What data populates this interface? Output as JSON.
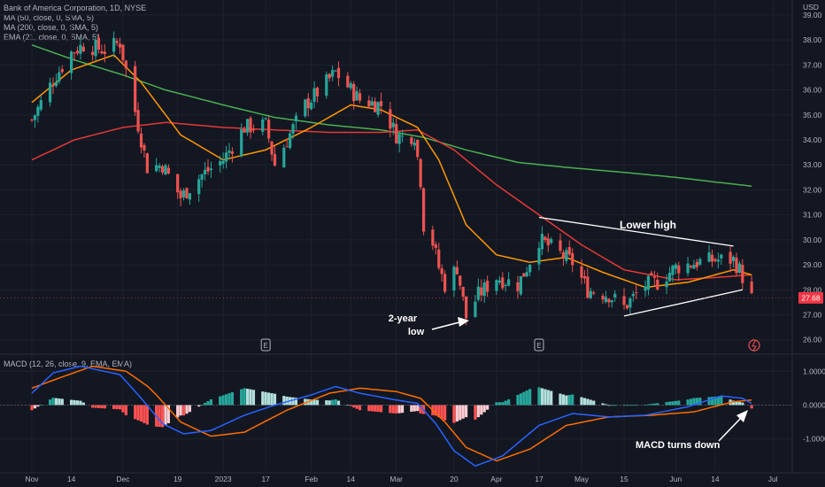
{
  "legend": {
    "title": "Bank of America Corporation, 1D, NYSE",
    "ma50": "MA (50, close, 0, SMA, 5)",
    "ma200": "MA (200, close, 0, SMA, 5)",
    "ema21": "EMA (21, close, 0, SMA, 5)",
    "macd": "MACD (12, 26, close, 9, EMA, EMA)"
  },
  "currency": "USD",
  "last_price": "27.68",
  "annotations": {
    "lower_high": "Lower high",
    "two_year_low_1": "2-year",
    "two_year_low_2": "low",
    "macd_turns_down": "MACD turns down"
  },
  "event_markers": [
    "E",
    "E"
  ],
  "colors": {
    "background": "#131722",
    "up": "#26a69a",
    "down": "#ef5350",
    "ma50": "#e53935",
    "ma200": "#4caf50",
    "ema21": "#ff9800",
    "macd_line": "#2962ff",
    "signal_line": "#ff6d00",
    "hist_up": "#26a69a",
    "hist_up_fading": "#b2dfdb",
    "hist_down": "#ff5252",
    "hist_down_fading": "#ffcdd2",
    "grid": "#1e222d",
    "price_tag": "#f23645"
  },
  "chart_data": {
    "type": "candlestick",
    "y_axis": {
      "ticks": [
        "39.00",
        "38.00",
        "37.00",
        "36.00",
        "35.00",
        "34.00",
        "33.00",
        "32.00",
        "31.00",
        "30.00",
        "29.00",
        "28.00",
        "27.00",
        "26.00"
      ],
      "range": [
        25.6,
        39.6
      ]
    },
    "macd_axis": {
      "ticks": [
        "1.0000",
        "0.0000",
        "-1.0000"
      ],
      "range": [
        -1.95,
        1.4
      ]
    },
    "x_axis": {
      "ticks": [
        "Nov",
        "14",
        "Dec",
        "19",
        "2023",
        "17",
        "Feb",
        "14",
        "Mar",
        "20",
        "Apr",
        "17",
        "May",
        "15",
        "Jun",
        "14",
        "Jul"
      ],
      "range": [
        "2022-11-01",
        "2023-07-05"
      ]
    },
    "price_keypoints": [
      [
        "2022-11-01",
        34.8
      ],
      [
        "2022-11-08",
        36.4
      ],
      [
        "2022-11-14",
        37.5
      ],
      [
        "2022-11-18",
        37.8
      ],
      [
        "2022-11-25",
        37.6
      ],
      [
        "2022-11-30",
        37.9
      ],
      [
        "2022-12-02",
        36.8
      ],
      [
        "2022-12-06",
        34.6
      ],
      [
        "2022-12-09",
        32.9
      ],
      [
        "2022-12-14",
        33.0
      ],
      [
        "2022-12-20",
        31.7
      ],
      [
        "2022-12-27",
        32.6
      ],
      [
        "2023-01-03",
        33.2
      ],
      [
        "2023-01-10",
        34.5
      ],
      [
        "2023-01-17",
        34.6
      ],
      [
        "2023-01-20",
        33.0
      ],
      [
        "2023-01-24",
        34.0
      ],
      [
        "2023-01-30",
        35.4
      ],
      [
        "2023-02-03",
        35.9
      ],
      [
        "2023-02-09",
        36.7
      ],
      [
        "2023-02-14",
        36.0
      ],
      [
        "2023-02-17",
        35.6
      ],
      [
        "2023-02-24",
        35.4
      ],
      [
        "2023-03-01",
        34.2
      ],
      [
        "2023-03-03",
        34.1
      ],
      [
        "2023-03-07",
        34.2
      ],
      [
        "2023-03-09",
        32.4
      ],
      [
        "2023-03-10",
        30.6
      ],
      [
        "2023-03-13",
        29.9
      ],
      [
        "2023-03-15",
        28.9
      ],
      [
        "2023-03-17",
        28.2
      ],
      [
        "2023-03-21",
        28.9
      ],
      [
        "2023-03-24",
        26.9
      ],
      [
        "2023-03-28",
        27.8
      ],
      [
        "2023-04-03",
        28.5
      ],
      [
        "2023-04-10",
        28.2
      ],
      [
        "2023-04-13",
        28.9
      ],
      [
        "2023-04-17",
        30.0
      ],
      [
        "2023-04-21",
        29.7
      ],
      [
        "2023-04-28",
        29.1
      ],
      [
        "2023-05-03",
        28.0
      ],
      [
        "2023-05-10",
        27.8
      ],
      [
        "2023-05-15",
        27.3
      ],
      [
        "2023-05-22",
        28.2
      ],
      [
        "2023-05-26",
        28.3
      ],
      [
        "2023-06-01",
        28.9
      ],
      [
        "2023-06-08",
        29.1
      ],
      [
        "2023-06-14",
        29.2
      ],
      [
        "2023-06-20",
        29.2
      ],
      [
        "2023-06-22",
        28.8
      ],
      [
        "2023-06-26",
        27.68
      ]
    ],
    "ema21_keypoints": [
      [
        "2022-11-01",
        35.5
      ],
      [
        "2022-11-14",
        36.8
      ],
      [
        "2022-11-28",
        37.4
      ],
      [
        "2022-12-07",
        36.3
      ],
      [
        "2022-12-20",
        34.2
      ],
      [
        "2023-01-03",
        33.2
      ],
      [
        "2023-01-17",
        33.6
      ],
      [
        "2023-02-01",
        34.5
      ],
      [
        "2023-02-14",
        35.4
      ],
      [
        "2023-02-24",
        35.2
      ],
      [
        "2023-03-08",
        34.5
      ],
      [
        "2023-03-15",
        33.2
      ],
      [
        "2023-03-24",
        30.6
      ],
      [
        "2023-04-03",
        29.4
      ],
      [
        "2023-04-14",
        29.1
      ],
      [
        "2023-04-26",
        29.3
      ],
      [
        "2023-05-08",
        28.7
      ],
      [
        "2023-05-22",
        28.1
      ],
      [
        "2023-06-05",
        28.3
      ],
      [
        "2023-06-20",
        28.8
      ],
      [
        "2023-06-26",
        28.6
      ]
    ],
    "ma50_keypoints": [
      [
        "2022-11-01",
        33.2
      ],
      [
        "2022-11-15",
        34.0
      ],
      [
        "2022-12-01",
        34.5
      ],
      [
        "2022-12-15",
        34.7
      ],
      [
        "2023-01-03",
        34.5
      ],
      [
        "2023-01-20",
        34.4
      ],
      [
        "2023-02-07",
        34.3
      ],
      [
        "2023-02-24",
        34.3
      ],
      [
        "2023-03-08",
        34.4
      ],
      [
        "2023-03-20",
        33.6
      ],
      [
        "2023-04-03",
        32.2
      ],
      [
        "2023-04-17",
        31.0
      ],
      [
        "2023-05-01",
        29.8
      ],
      [
        "2023-05-15",
        28.8
      ],
      [
        "2023-06-01",
        28.4
      ],
      [
        "2023-06-15",
        28.5
      ],
      [
        "2023-06-26",
        28.6
      ]
    ],
    "ma200_keypoints": [
      [
        "2022-11-01",
        37.8
      ],
      [
        "2022-11-15",
        37.2
      ],
      [
        "2022-12-01",
        36.6
      ],
      [
        "2022-12-15",
        36.0
      ],
      [
        "2023-01-03",
        35.4
      ],
      [
        "2023-01-20",
        34.9
      ],
      [
        "2023-02-07",
        34.6
      ],
      [
        "2023-02-24",
        34.4
      ],
      [
        "2023-03-10",
        34.1
      ],
      [
        "2023-03-24",
        33.6
      ],
      [
        "2023-04-10",
        33.1
      ],
      [
        "2023-04-26",
        32.9
      ],
      [
        "2023-05-15",
        32.7
      ],
      [
        "2023-06-01",
        32.5
      ],
      [
        "2023-06-15",
        32.3
      ],
      [
        "2023-06-26",
        32.15
      ]
    ],
    "macd_keypoints": [
      [
        "2022-11-01",
        0.35
      ],
      [
        "2022-11-08",
        0.95
      ],
      [
        "2022-11-17",
        1.15
      ],
      [
        "2022-11-30",
        0.9
      ],
      [
        "2022-12-07",
        0.2
      ],
      [
        "2022-12-14",
        -0.55
      ],
      [
        "2022-12-21",
        -0.85
      ],
      [
        "2022-12-30",
        -0.75
      ],
      [
        "2023-01-10",
        -0.3
      ],
      [
        "2023-01-20",
        0.0
      ],
      [
        "2023-02-01",
        0.3
      ],
      [
        "2023-02-09",
        0.55
      ],
      [
        "2023-02-17",
        0.35
      ],
      [
        "2023-03-01",
        0.15
      ],
      [
        "2023-03-08",
        0.05
      ],
      [
        "2023-03-14",
        -0.55
      ],
      [
        "2023-03-20",
        -1.35
      ],
      [
        "2023-03-27",
        -1.8
      ],
      [
        "2023-04-05",
        -1.5
      ],
      [
        "2023-04-17",
        -0.6
      ],
      [
        "2023-04-28",
        -0.25
      ],
      [
        "2023-05-10",
        -0.35
      ],
      [
        "2023-05-22",
        -0.3
      ],
      [
        "2023-06-05",
        -0.05
      ],
      [
        "2023-06-16",
        0.27
      ],
      [
        "2023-06-23",
        0.2
      ],
      [
        "2023-06-26",
        0.05
      ]
    ],
    "signal_keypoints": [
      [
        "2022-11-01",
        0.5
      ],
      [
        "2022-11-10",
        0.8
      ],
      [
        "2022-11-21",
        1.15
      ],
      [
        "2022-12-02",
        1.0
      ],
      [
        "2022-12-10",
        0.5
      ],
      [
        "2022-12-20",
        -0.5
      ],
      [
        "2022-12-30",
        -0.92
      ],
      [
        "2023-01-10",
        -0.8
      ],
      [
        "2023-01-24",
        -0.15
      ],
      [
        "2023-02-07",
        0.35
      ],
      [
        "2023-02-17",
        0.5
      ],
      [
        "2023-03-01",
        0.4
      ],
      [
        "2023-03-09",
        0.2
      ],
      [
        "2023-03-17",
        -0.5
      ],
      [
        "2023-03-24",
        -1.25
      ],
      [
        "2023-04-03",
        -1.65
      ],
      [
        "2023-04-14",
        -1.3
      ],
      [
        "2023-04-26",
        -0.6
      ],
      [
        "2023-05-10",
        -0.35
      ],
      [
        "2023-05-24",
        -0.3
      ],
      [
        "2023-06-07",
        -0.2
      ],
      [
        "2023-06-20",
        0.1
      ],
      [
        "2023-06-26",
        0.15
      ]
    ],
    "trendlines": [
      {
        "from": [
          "2023-04-17",
          30.9
        ],
        "to": [
          "2023-06-20",
          29.75
        ]
      },
      {
        "from": [
          "2023-05-15",
          26.95
        ],
        "to": [
          "2023-06-23",
          28.0
        ]
      }
    ],
    "event_dates": [
      "2023-01-17",
      "2023-04-17"
    ]
  }
}
